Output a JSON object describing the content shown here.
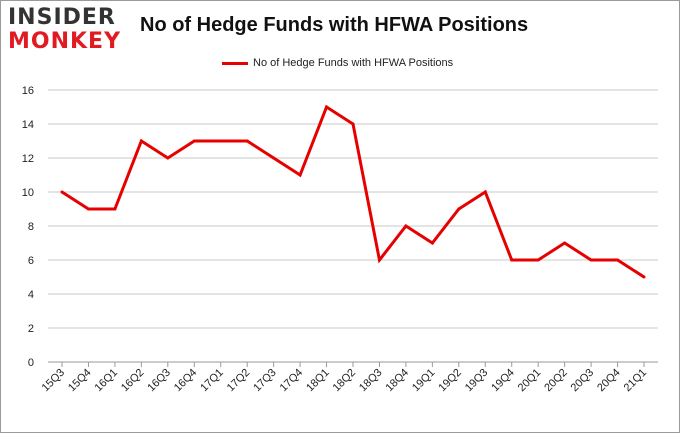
{
  "logo": {
    "line1": "INSIDER",
    "line2": "MONKEY"
  },
  "chart_data": {
    "type": "line",
    "title": "No of Hedge Funds with HFWA Positions",
    "xlabel": "",
    "ylabel": "",
    "ylim": [
      0,
      16
    ],
    "yticks": [
      0,
      2,
      4,
      6,
      8,
      10,
      12,
      14,
      16
    ],
    "grid": true,
    "legend": "top-center",
    "categories": [
      "15Q3",
      "15Q4",
      "16Q1",
      "16Q2",
      "16Q3",
      "16Q4",
      "17Q1",
      "17Q2",
      "17Q3",
      "17Q4",
      "18Q1",
      "18Q2",
      "18Q3",
      "18Q4",
      "19Q1",
      "19Q2",
      "19Q3",
      "19Q4",
      "20Q1",
      "20Q2",
      "20Q3",
      "20Q4",
      "21Q1"
    ],
    "series": [
      {
        "name": "No of Hedge Funds with HFWA Positions",
        "color": "#e60000",
        "values": [
          10,
          9,
          9,
          13,
          12,
          13,
          13,
          13,
          12,
          11,
          15,
          14,
          6,
          8,
          7,
          9,
          10,
          6,
          6,
          7,
          6,
          6,
          5
        ]
      }
    ]
  }
}
